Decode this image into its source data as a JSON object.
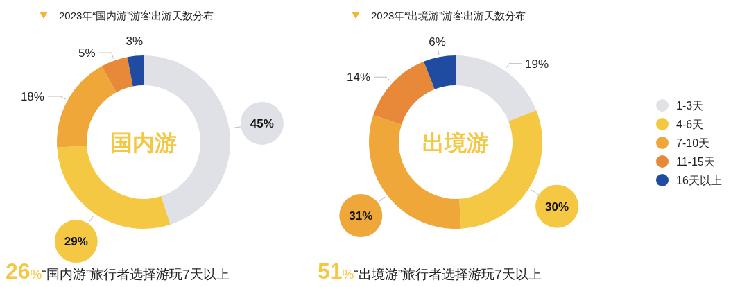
{
  "chart_data": [
    {
      "type": "donut",
      "title": "2023年“国内游”游客出游天数分布",
      "values": [
        45,
        29,
        18,
        5,
        3
      ],
      "colors": [
        "#dfe1e6",
        "#f5c844",
        "#f0a73a",
        "#e8893a",
        "#1f4ba0"
      ],
      "value_labels": [
        "45%",
        "29%",
        "18%",
        "5%",
        "3%"
      ],
      "annotations": [
        "国内游",
        "26%",
        "“国内游”旅行者选择游玩7天以上"
      ]
    },
    {
      "type": "donut",
      "title": "2023年“出境游”游客出游天数分布",
      "categories": [
        "1-3天",
        "4-6天",
        "7-10天",
        "11-15天",
        "16天以上"
      ],
      "values": [
        19,
        30,
        31,
        14,
        6
      ],
      "colors": [
        "#dfe1e6",
        "#f5c844",
        "#f0a73a",
        "#e8893a",
        "#1f4ba0"
      ],
      "value_labels": [
        "19%",
        "30%",
        "31%",
        "14%",
        "6%"
      ],
      "annotations": [
        "出境游",
        "51%",
        "“出境游”旅行者选择游玩7天以上"
      ],
      "legend": "right"
    }
  ]
}
